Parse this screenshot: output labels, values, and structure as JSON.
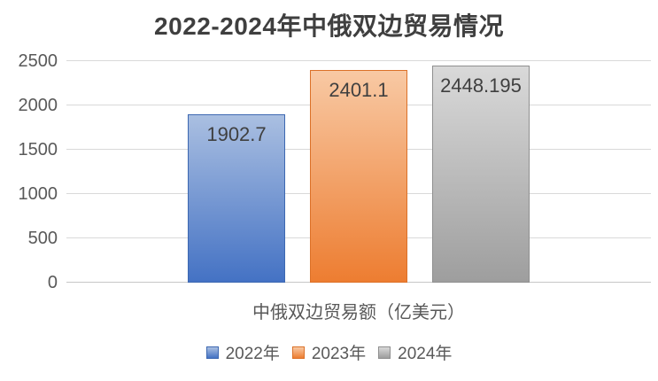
{
  "chart_data": {
    "type": "bar",
    "title": "2022-2024年中俄双边贸易情况",
    "xlabel": "中俄双边贸易额（亿美元）",
    "ylabel": "",
    "categories": [
      "中俄双边贸易额（亿美元）"
    ],
    "series": [
      {
        "id": "2022",
        "name": "2022年",
        "value": 1902.7,
        "label": "1902.7",
        "color_top": "#aabfe1",
        "color_bottom": "#4472c4",
        "border_color": "#3d68b1"
      },
      {
        "id": "2023",
        "name": "2023年",
        "value": 2401.1,
        "label": "2401.1",
        "color_top": "#f8c9a4",
        "color_bottom": "#ed7d31",
        "border_color": "#dc7128"
      },
      {
        "id": "2024",
        "name": "2024年",
        "value": 2448.195,
        "label": "2448.195",
        "color_top": "#d9d9d9",
        "color_bottom": "#9e9e9e",
        "border_color": "#8f8f8f"
      }
    ],
    "ylim": [
      0,
      2500
    ],
    "yticks": [
      0,
      500,
      1000,
      1500,
      2000,
      2500
    ],
    "grid": true,
    "legend_position": "bottom",
    "gridline_color": "#d9d9d9",
    "text_color": "#595959",
    "title_color": "#3f3f3f"
  }
}
